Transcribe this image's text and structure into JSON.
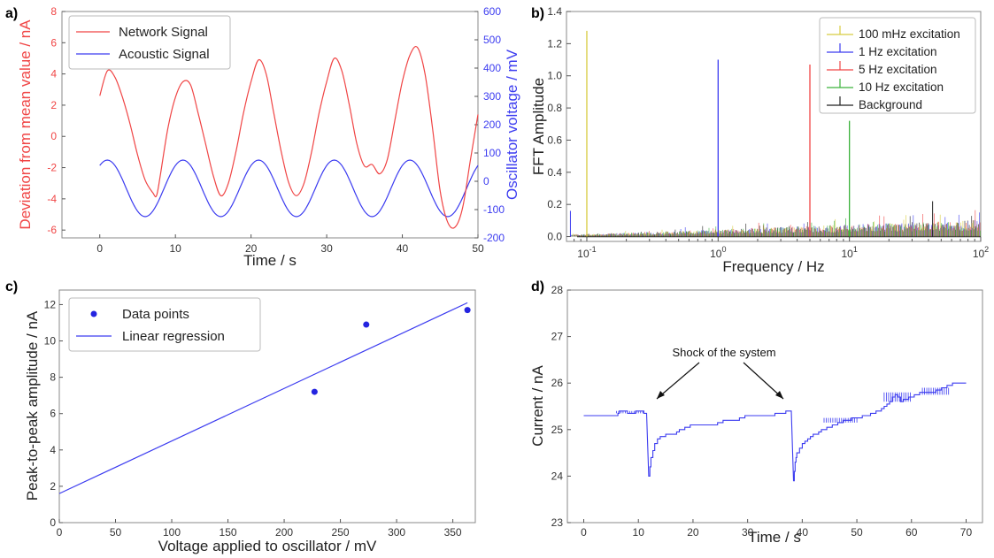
{
  "colors": {
    "red": "#f04545",
    "blue": "#3c3cf0",
    "yellow": "#d8cc40",
    "green": "#3ab23a",
    "black": "#222222"
  },
  "panels": [
    "a)",
    "b)",
    "c)",
    "d)"
  ],
  "chart_data": [
    {
      "panel": "a)",
      "type": "line",
      "xlabel": "Time / s",
      "ylabel": "Deviation from mean value / nA",
      "y2label": "Oscillator voltage / mV",
      "xlim": [
        -5,
        50
      ],
      "ylim": [
        -6.5,
        8
      ],
      "y2lim": [
        -200,
        600
      ],
      "xticks": [
        0,
        10,
        20,
        30,
        40,
        50
      ],
      "yticks": [
        -6,
        -4,
        -2,
        0,
        2,
        4,
        6,
        8
      ],
      "y2ticks": [
        -200,
        -100,
        0,
        100,
        200,
        300,
        400,
        500,
        600
      ],
      "legend": "top-left",
      "series": [
        {
          "name": "Network Signal",
          "axis": "left",
          "x": [
            0,
            1,
            2,
            3,
            4,
            5,
            6,
            7,
            7.5,
            8,
            9,
            10,
            11,
            12,
            13,
            14,
            15,
            16,
            17,
            18,
            19,
            20,
            21,
            22,
            23,
            24,
            25,
            26,
            27,
            28,
            29,
            30,
            31,
            32,
            33,
            34,
            35,
            36,
            37,
            38,
            39,
            40,
            41,
            42,
            43,
            44,
            45,
            46,
            47,
            48,
            49,
            50
          ],
          "y": [
            2.6,
            4.2,
            3.8,
            2.5,
            0.8,
            -1.2,
            -2.8,
            -3.6,
            -3.8,
            -2.5,
            0.5,
            2.5,
            3.5,
            3.3,
            1.5,
            -0.5,
            -2.5,
            -3.8,
            -3.0,
            -1.0,
            1.5,
            3.5,
            4.9,
            4.0,
            1.5,
            -1.0,
            -3.0,
            -3.8,
            -3.0,
            -1.0,
            1.5,
            3.5,
            5.0,
            4.2,
            2.0,
            -0.5,
            -1.9,
            -1.8,
            -2.4,
            -1.5,
            1.0,
            3.5,
            5.2,
            5.7,
            4.0,
            0.5,
            -3.5,
            -5.5,
            -5.8,
            -4.5,
            -1.5,
            1.4
          ]
        },
        {
          "name": "Acoustic Signal",
          "axis": "right",
          "model": "sine",
          "amplitude": 100,
          "offset": -25,
          "period": 10,
          "peak_at": 1,
          "x": [
            0,
            50
          ]
        }
      ]
    },
    {
      "panel": "b)",
      "type": "line",
      "xlabel": "Frequency / Hz",
      "ylabel": "FFT Amplitude",
      "xscale": "log",
      "xlim": [
        0.07,
        100
      ],
      "ylim": [
        -0.03,
        1.4
      ],
      "xticks": [
        0.1,
        1,
        10,
        100
      ],
      "xticklabels": [
        "10^-1",
        "10^0",
        "10^1",
        "10^2"
      ],
      "yticks": [
        0.0,
        0.2,
        0.4,
        0.6,
        0.8,
        1.0,
        1.2,
        1.4
      ],
      "legend": "top-right",
      "series": [
        {
          "name": "100 mHz excitation",
          "peak_x": 0.1,
          "peak_y": 1.28
        },
        {
          "name": "1 Hz excitation",
          "peak_x": 1.0,
          "peak_y": 1.1
        },
        {
          "name": "5 Hz excitation",
          "peak_x": 5.0,
          "peak_y": 1.07
        },
        {
          "name": "10 Hz excitation",
          "peak_x": 10.0,
          "peak_y": 0.72
        },
        {
          "name": "Background",
          "peak_x": 43,
          "peak_y": 0.22
        }
      ],
      "noise_level": 0.1
    },
    {
      "panel": "c)",
      "type": "scatter",
      "xlabel": "Voltage applied to oscillator / mV",
      "ylabel": "Peak-to-peak amplitude / nA",
      "xlim": [
        0,
        370
      ],
      "ylim": [
        0,
        12.8
      ],
      "xticks": [
        0,
        50,
        100,
        150,
        200,
        250,
        300,
        350
      ],
      "yticks": [
        0,
        2,
        4,
        6,
        8,
        10,
        12
      ],
      "legend": "top-left",
      "series": [
        {
          "name": "Data points",
          "x": [
            227,
            273,
            363
          ],
          "y": [
            7.2,
            10.9,
            11.7
          ]
        },
        {
          "name": "Linear regression",
          "x": [
            0,
            363
          ],
          "y": [
            1.6,
            12.1
          ]
        }
      ]
    },
    {
      "panel": "d)",
      "type": "line",
      "xlabel": "Time / s",
      "ylabel": "Current / nA",
      "xlim": [
        -3,
        73
      ],
      "ylim": [
        23,
        28
      ],
      "xticks": [
        0,
        10,
        20,
        30,
        40,
        50,
        60,
        70
      ],
      "yticks": [
        23,
        24,
        25,
        26,
        27,
        28
      ],
      "annotation": "Shock of the system",
      "series": [
        {
          "name": "Current",
          "x": [
            0,
            6,
            6.5,
            9,
            10,
            11,
            11.5,
            11.9,
            12.3,
            13,
            14,
            16,
            18,
            20,
            22,
            24,
            26,
            28,
            30,
            32,
            34,
            36,
            38,
            38.4,
            38.7,
            39,
            40,
            41,
            42,
            44,
            46,
            48,
            50,
            52,
            54,
            56,
            57,
            58,
            60,
            62,
            64,
            66,
            68,
            70
          ],
          "y": [
            25.3,
            25.3,
            25.4,
            25.35,
            25.4,
            25.35,
            25.35,
            24.0,
            24.4,
            24.7,
            24.85,
            24.9,
            25.0,
            25.1,
            25.1,
            25.1,
            25.2,
            25.2,
            25.3,
            25.3,
            25.3,
            25.35,
            25.4,
            23.9,
            24.3,
            24.5,
            24.7,
            24.8,
            24.9,
            25.0,
            25.1,
            25.2,
            25.25,
            25.3,
            25.4,
            25.6,
            25.75,
            25.6,
            25.7,
            25.8,
            25.8,
            25.9,
            26.0,
            26.0
          ]
        }
      ]
    }
  ]
}
